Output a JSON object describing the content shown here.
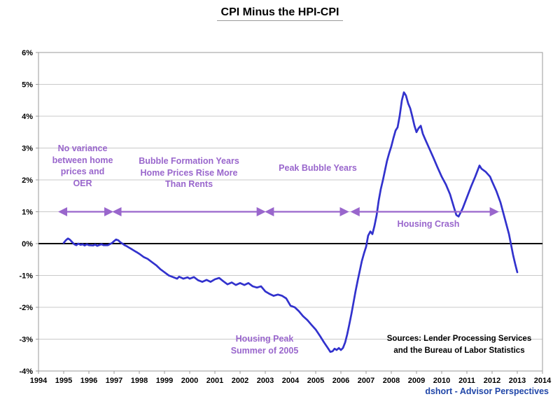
{
  "title": "CPI Minus the HPI-CPI",
  "credit": "dshort - Advisor Perspectives",
  "colors": {
    "line": "#3232cd",
    "annotation": "#9966cc",
    "grid": "#c9c9c9",
    "axis": "#999999",
    "zero": "#000000",
    "tick_text": "#000000",
    "credit": "#2046a8"
  },
  "chart_data": {
    "type": "line",
    "title": "CPI Minus the HPI-CPI",
    "xlabel": "",
    "ylabel": "",
    "x_range": [
      1994,
      2014
    ],
    "y_range": [
      -4,
      6
    ],
    "grid": "horizontal",
    "legend": "none",
    "x_ticks": [
      1994,
      1995,
      1996,
      1997,
      1998,
      1999,
      2000,
      2001,
      2002,
      2003,
      2004,
      2005,
      2006,
      2007,
      2008,
      2009,
      2010,
      2011,
      2012,
      2013,
      2014
    ],
    "y_ticks": [
      "6%",
      "5%",
      "4%",
      "3%",
      "2%",
      "1%",
      "0%",
      "-1%",
      "-2%",
      "-3%",
      "-4%"
    ],
    "series": [
      {
        "name": "CPI minus HPI-CPI",
        "points": [
          [
            1995.0,
            0.02
          ],
          [
            1995.08,
            0.1
          ],
          [
            1995.17,
            0.16
          ],
          [
            1995.25,
            0.12
          ],
          [
            1995.33,
            0.05
          ],
          [
            1995.42,
            -0.02
          ],
          [
            1995.5,
            -0.05
          ],
          [
            1995.58,
            0.0
          ],
          [
            1995.67,
            -0.04
          ],
          [
            1995.75,
            -0.02
          ],
          [
            1995.83,
            -0.06
          ],
          [
            1995.92,
            -0.02
          ],
          [
            1996.0,
            -0.05
          ],
          [
            1996.17,
            -0.06
          ],
          [
            1996.25,
            -0.03
          ],
          [
            1996.33,
            -0.07
          ],
          [
            1996.5,
            -0.02
          ],
          [
            1996.58,
            -0.05
          ],
          [
            1996.75,
            -0.05
          ],
          [
            1996.92,
            0.02
          ],
          [
            1997.0,
            0.08
          ],
          [
            1997.08,
            0.13
          ],
          [
            1997.17,
            0.1
          ],
          [
            1997.25,
            0.04
          ],
          [
            1997.33,
            0.0
          ],
          [
            1997.42,
            -0.05
          ],
          [
            1997.5,
            -0.08
          ],
          [
            1997.58,
            -0.12
          ],
          [
            1997.67,
            -0.16
          ],
          [
            1997.75,
            -0.2
          ],
          [
            1997.83,
            -0.24
          ],
          [
            1997.92,
            -0.28
          ],
          [
            1998.0,
            -0.32
          ],
          [
            1998.17,
            -0.42
          ],
          [
            1998.33,
            -0.48
          ],
          [
            1998.5,
            -0.58
          ],
          [
            1998.67,
            -0.68
          ],
          [
            1998.83,
            -0.8
          ],
          [
            1999.0,
            -0.9
          ],
          [
            1999.17,
            -1.0
          ],
          [
            1999.33,
            -1.05
          ],
          [
            1999.5,
            -1.1
          ],
          [
            1999.58,
            -1.04
          ],
          [
            1999.75,
            -1.1
          ],
          [
            1999.92,
            -1.06
          ],
          [
            2000.0,
            -1.1
          ],
          [
            2000.17,
            -1.05
          ],
          [
            2000.33,
            -1.15
          ],
          [
            2000.5,
            -1.2
          ],
          [
            2000.67,
            -1.14
          ],
          [
            2000.83,
            -1.2
          ],
          [
            2001.0,
            -1.12
          ],
          [
            2001.17,
            -1.08
          ],
          [
            2001.33,
            -1.18
          ],
          [
            2001.5,
            -1.28
          ],
          [
            2001.67,
            -1.22
          ],
          [
            2001.83,
            -1.3
          ],
          [
            2002.0,
            -1.24
          ],
          [
            2002.17,
            -1.3
          ],
          [
            2002.33,
            -1.24
          ],
          [
            2002.5,
            -1.34
          ],
          [
            2002.67,
            -1.38
          ],
          [
            2002.83,
            -1.34
          ],
          [
            2003.0,
            -1.5
          ],
          [
            2003.17,
            -1.58
          ],
          [
            2003.33,
            -1.64
          ],
          [
            2003.5,
            -1.6
          ],
          [
            2003.67,
            -1.64
          ],
          [
            2003.83,
            -1.72
          ],
          [
            2004.0,
            -1.95
          ],
          [
            2004.17,
            -2.0
          ],
          [
            2004.33,
            -2.12
          ],
          [
            2004.5,
            -2.28
          ],
          [
            2004.67,
            -2.4
          ],
          [
            2004.83,
            -2.55
          ],
          [
            2005.0,
            -2.7
          ],
          [
            2005.17,
            -2.9
          ],
          [
            2005.33,
            -3.1
          ],
          [
            2005.5,
            -3.3
          ],
          [
            2005.58,
            -3.4
          ],
          [
            2005.67,
            -3.38
          ],
          [
            2005.75,
            -3.3
          ],
          [
            2005.83,
            -3.34
          ],
          [
            2005.92,
            -3.28
          ],
          [
            2006.0,
            -3.34
          ],
          [
            2006.08,
            -3.28
          ],
          [
            2006.17,
            -3.1
          ],
          [
            2006.25,
            -2.85
          ],
          [
            2006.33,
            -2.55
          ],
          [
            2006.42,
            -2.2
          ],
          [
            2006.5,
            -1.85
          ],
          [
            2006.58,
            -1.5
          ],
          [
            2006.67,
            -1.15
          ],
          [
            2006.75,
            -0.85
          ],
          [
            2006.83,
            -0.55
          ],
          [
            2006.92,
            -0.3
          ],
          [
            2007.0,
            -0.1
          ],
          [
            2007.08,
            0.25
          ],
          [
            2007.17,
            0.38
          ],
          [
            2007.25,
            0.3
          ],
          [
            2007.33,
            0.55
          ],
          [
            2007.42,
            0.9
          ],
          [
            2007.5,
            1.35
          ],
          [
            2007.58,
            1.7
          ],
          [
            2007.67,
            2.0
          ],
          [
            2007.75,
            2.3
          ],
          [
            2007.83,
            2.6
          ],
          [
            2007.92,
            2.85
          ],
          [
            2008.0,
            3.05
          ],
          [
            2008.08,
            3.3
          ],
          [
            2008.17,
            3.55
          ],
          [
            2008.25,
            3.65
          ],
          [
            2008.33,
            4.0
          ],
          [
            2008.42,
            4.5
          ],
          [
            2008.5,
            4.75
          ],
          [
            2008.58,
            4.65
          ],
          [
            2008.67,
            4.4
          ],
          [
            2008.75,
            4.25
          ],
          [
            2008.83,
            4.0
          ],
          [
            2008.92,
            3.7
          ],
          [
            2009.0,
            3.5
          ],
          [
            2009.08,
            3.62
          ],
          [
            2009.17,
            3.7
          ],
          [
            2009.25,
            3.45
          ],
          [
            2009.33,
            3.3
          ],
          [
            2009.5,
            3.0
          ],
          [
            2009.67,
            2.7
          ],
          [
            2009.83,
            2.4
          ],
          [
            2010.0,
            2.1
          ],
          [
            2010.17,
            1.85
          ],
          [
            2010.33,
            1.55
          ],
          [
            2010.5,
            1.1
          ],
          [
            2010.58,
            0.9
          ],
          [
            2010.67,
            0.85
          ],
          [
            2010.83,
            1.1
          ],
          [
            2011.0,
            1.45
          ],
          [
            2011.17,
            1.8
          ],
          [
            2011.33,
            2.1
          ],
          [
            2011.5,
            2.45
          ],
          [
            2011.58,
            2.35
          ],
          [
            2011.75,
            2.25
          ],
          [
            2011.92,
            2.1
          ],
          [
            2012.0,
            1.95
          ],
          [
            2012.17,
            1.65
          ],
          [
            2012.33,
            1.3
          ],
          [
            2012.5,
            0.8
          ],
          [
            2012.67,
            0.3
          ],
          [
            2012.83,
            -0.35
          ],
          [
            2012.92,
            -0.65
          ],
          [
            2013.0,
            -0.9
          ]
        ]
      }
    ],
    "annotations": [
      {
        "id": "no-variance",
        "text": "No variance\nbetween home\nprices and\nOER"
      },
      {
        "id": "bubble-formation",
        "text": "Bubble Formation Years\nHome Prices Rise More\nThan Rents"
      },
      {
        "id": "peak-bubble",
        "text": "Peak Bubble Years"
      },
      {
        "id": "housing-crash",
        "text": "Housing Crash"
      },
      {
        "id": "housing-peak",
        "text": "Housing Peak\nSummer of 2005"
      }
    ],
    "arrows": [
      {
        "from": 1994.85,
        "to": 1996.9,
        "y": 1
      },
      {
        "from": 1997.0,
        "to": 2002.95,
        "y": 1
      },
      {
        "from": 2003.05,
        "to": 2006.25,
        "y": 1
      },
      {
        "from": 2006.45,
        "to": 2012.2,
        "y": 1
      }
    ],
    "sources": "Sources: Lender Processing Services\nand the Bureau of Labor Statistics"
  }
}
